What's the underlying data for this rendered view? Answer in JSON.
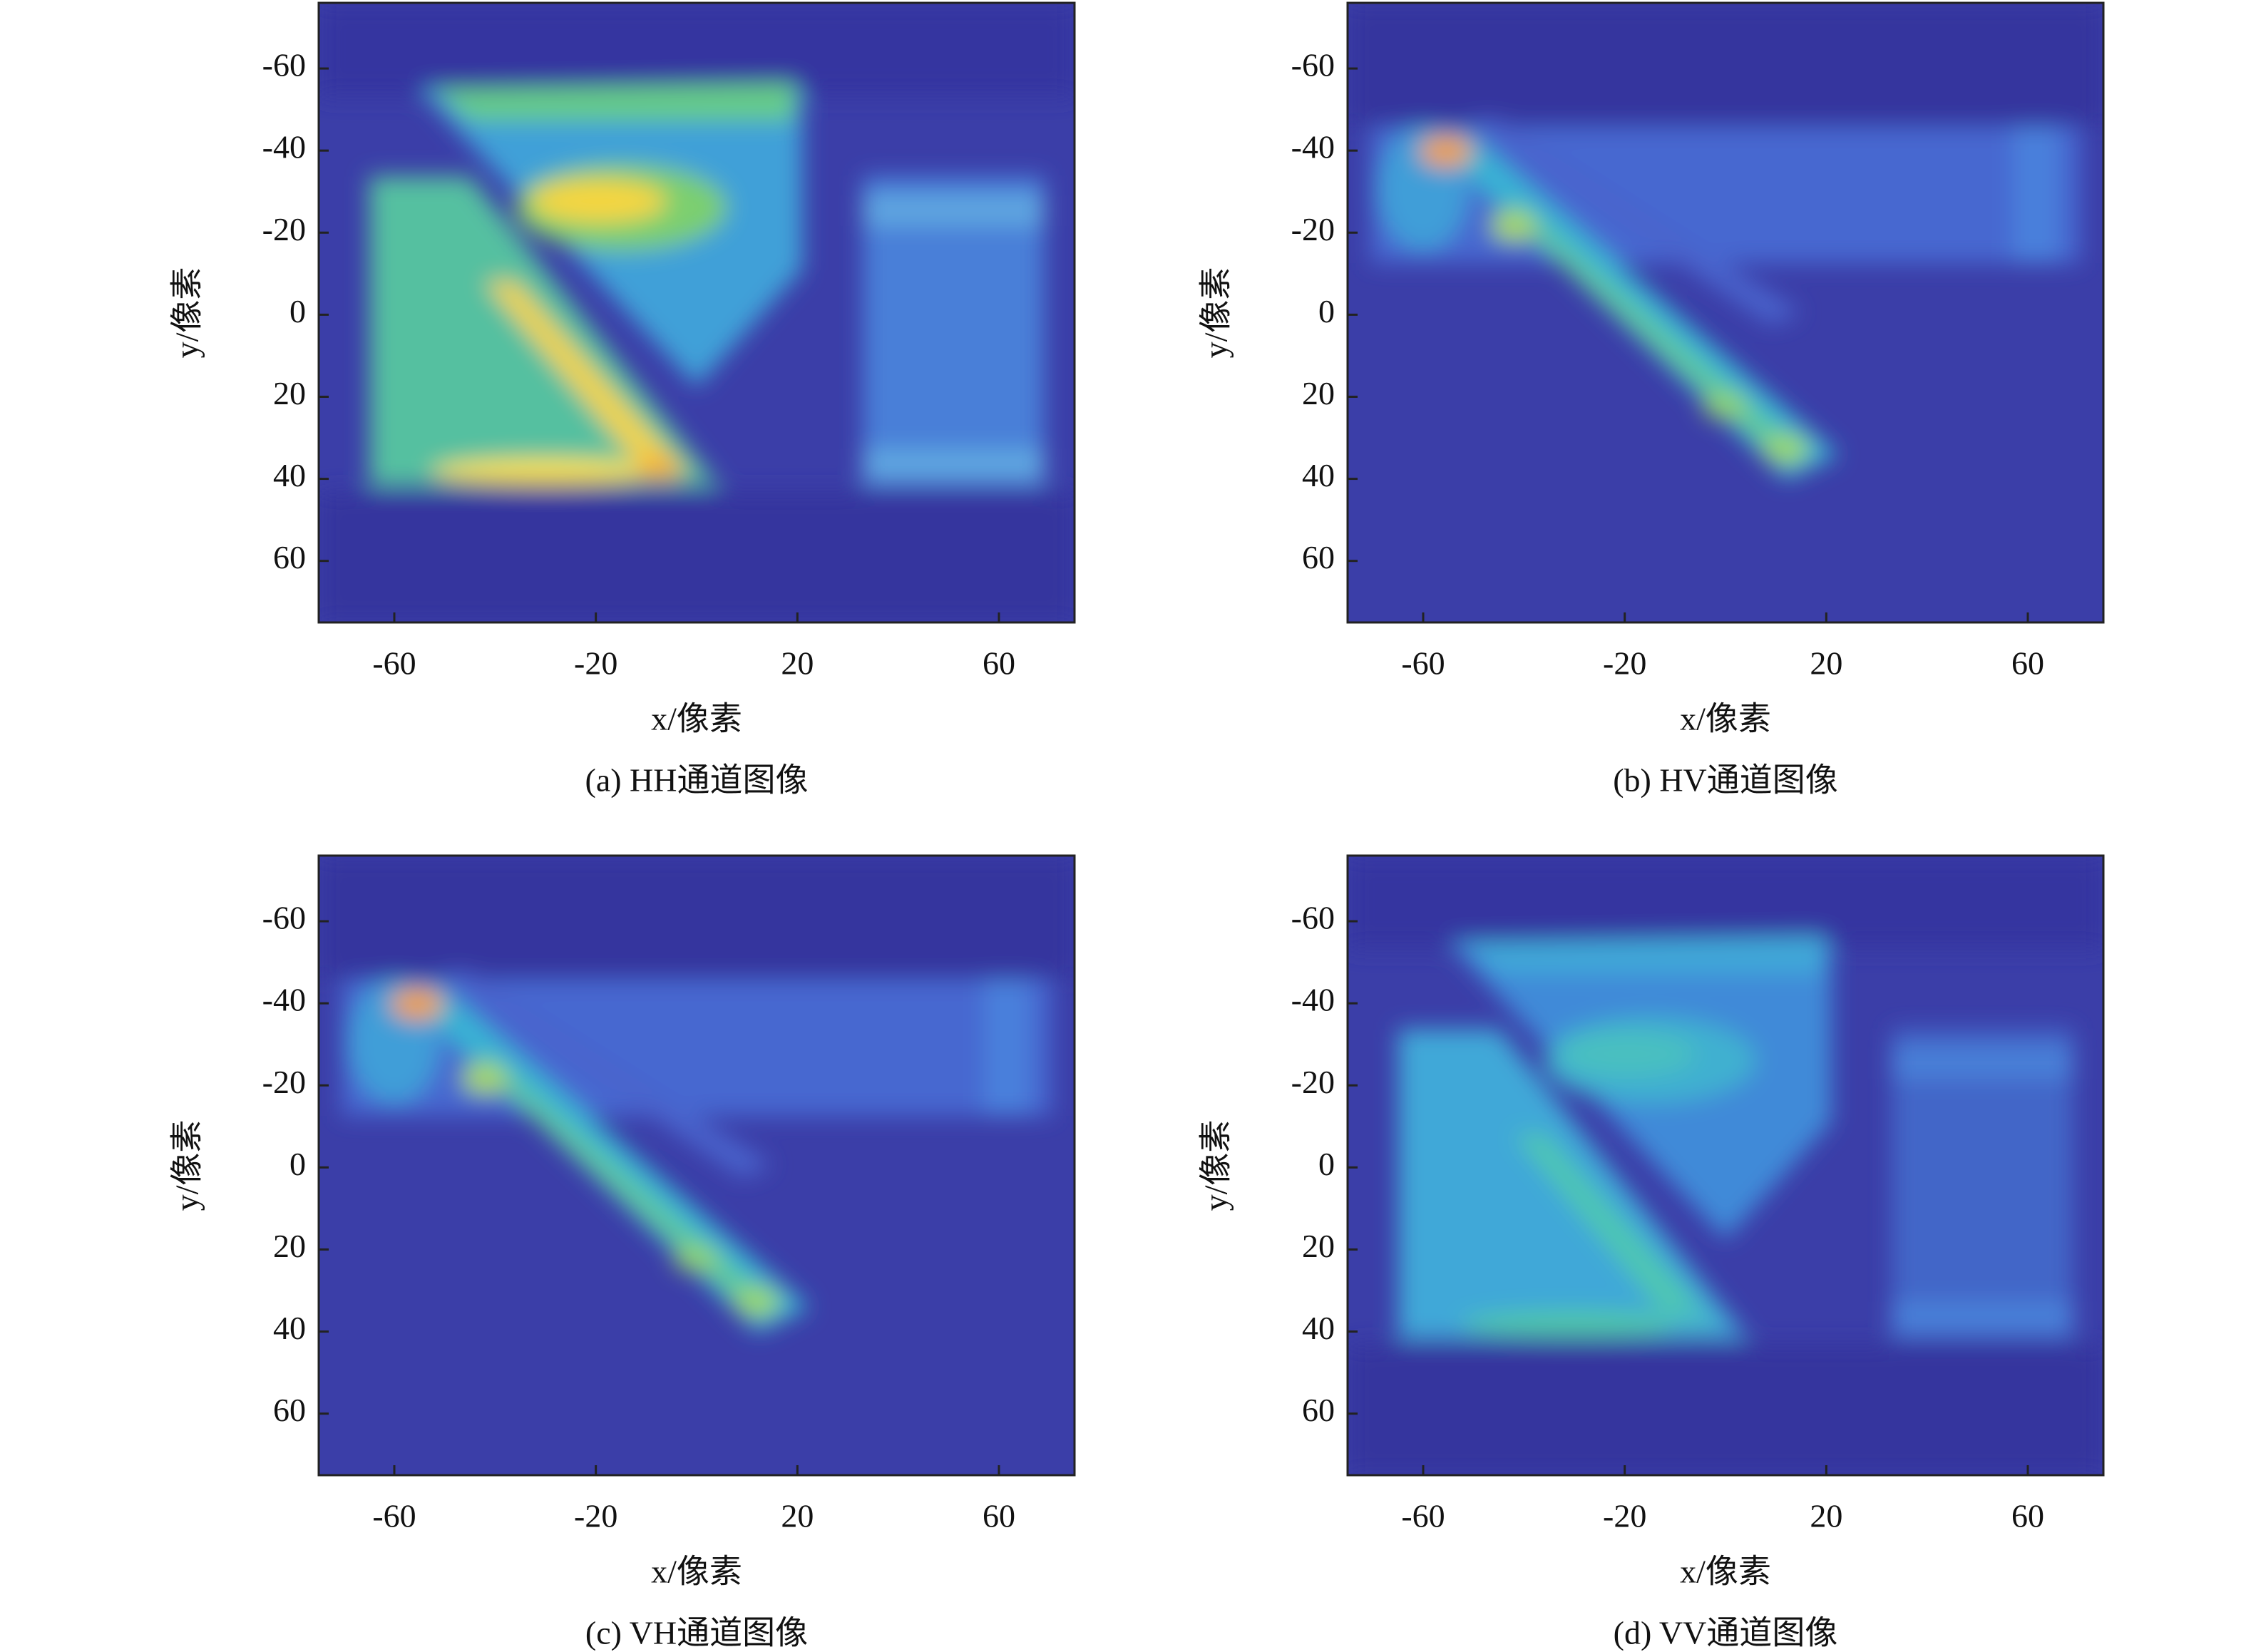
{
  "chart_data": [
    {
      "type": "heatmap",
      "caption": "(a) HH通道图像",
      "xlabel": "x/像素",
      "ylabel": "y/像素",
      "xlim": [
        -75,
        75
      ],
      "ylim": [
        -76,
        75
      ],
      "y_inverted": true,
      "xticks": [
        -60,
        -20,
        20,
        60
      ],
      "yticks": [
        -60,
        -40,
        -20,
        0,
        20,
        40,
        60
      ]
    },
    {
      "type": "heatmap",
      "caption": "(b) HV通道图像",
      "xlabel": "x/像素",
      "ylabel": "y/像素",
      "xlim": [
        -75,
        75
      ],
      "ylim": [
        -76,
        75
      ],
      "y_inverted": true,
      "xticks": [
        -60,
        -20,
        20,
        60
      ],
      "yticks": [
        -60,
        -40,
        -20,
        0,
        20,
        40,
        60
      ]
    },
    {
      "type": "heatmap",
      "caption": "(c) VH通道图像",
      "xlabel": "x/像素",
      "ylabel": "y/像素",
      "xlim": [
        -75,
        75
      ],
      "ylim": [
        -76,
        75
      ],
      "y_inverted": true,
      "xticks": [
        -60,
        -20,
        20,
        60
      ],
      "yticks": [
        -60,
        -40,
        -20,
        0,
        20,
        40,
        60
      ]
    },
    {
      "type": "heatmap",
      "caption": "(d) VV通道图像",
      "xlabel": "x/像素",
      "ylabel": "y/像素",
      "xlim": [
        -75,
        75
      ],
      "ylim": [
        -76,
        75
      ],
      "y_inverted": true,
      "xticks": [
        -60,
        -20,
        20,
        60
      ],
      "yticks": [
        -60,
        -40,
        -20,
        0,
        20,
        40,
        60
      ]
    }
  ]
}
